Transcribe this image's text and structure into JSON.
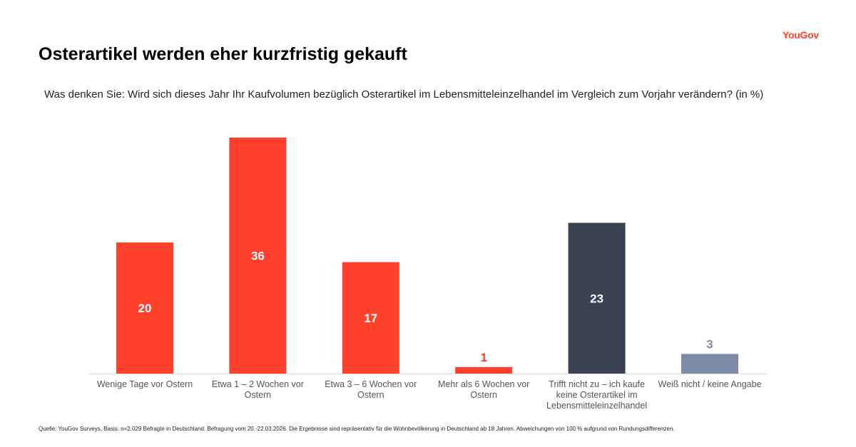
{
  "logo": "YouGov",
  "title": "Osterartikel werden eher kurzfristig gekauft",
  "question": "Was denken Sie: Wird sich dieses Jahr Ihr Kaufvolumen bezüglich Osterartikel im Lebensmitteleinzelhandel im Vergleich zum Vorjahr verändern? (in %)",
  "source": "Quelle: YouGov Surveys, Basis: n=2.029 Befragte in Deutschland. Befragung vom 20.-22.03.2026. Die Ergebnisse sind repräsentativ für die Wohnbevölkerung in Deutschland ab 18 Jahren. Abweichungen von 100 % aufgrund von Rundungsdifferenzen.",
  "chart_data": {
    "type": "bar",
    "categories": [
      "Wenige Tage vor Ostern",
      "Etwa 1 – 2 Wochen vor Ostern",
      "Etwa 3 – 6 Wochen vor Ostern",
      "Mehr als 6 Wochen vor Ostern",
      "Trifft nicht zu – ich kaufe keine Osterartikel im Lebensmitteleinzelhandel",
      "Weiß nicht / keine Angabe"
    ],
    "values": [
      20,
      36,
      17,
      1,
      23,
      3
    ],
    "colors": [
      "#ff412c",
      "#ff412c",
      "#ff412c",
      "#ff412c",
      "#3a4252",
      "#7d8ba6"
    ],
    "ylim": [
      0,
      36
    ],
    "grid": false,
    "legend": "none"
  }
}
